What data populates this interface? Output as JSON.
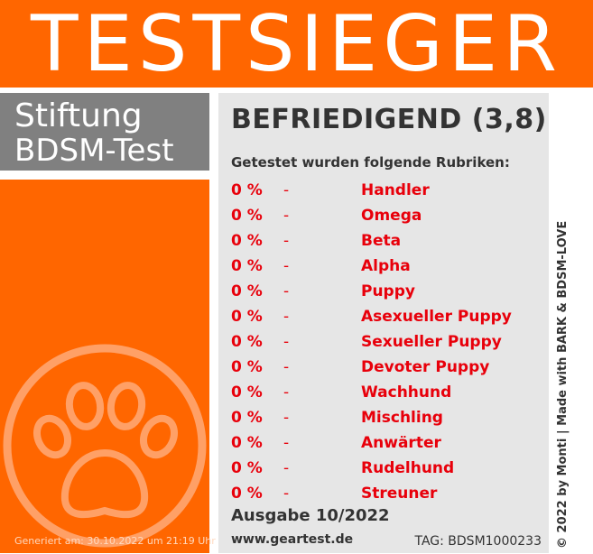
{
  "banner": {
    "title": "TESTSIEGER"
  },
  "brand": {
    "line1": "Stiftung",
    "line2": "BDSM-Test"
  },
  "rating": "BEFRIEDIGEND (3,8)",
  "subtitle": "Getestet wurden folgende Rubriken:",
  "rubriken": [
    {
      "pct": "0 %",
      "dash": "-",
      "name": "Handler"
    },
    {
      "pct": "0 %",
      "dash": "-",
      "name": "Omega"
    },
    {
      "pct": "0 %",
      "dash": "-",
      "name": "Beta"
    },
    {
      "pct": "0 %",
      "dash": "-",
      "name": "Alpha"
    },
    {
      "pct": "0 %",
      "dash": "-",
      "name": "Puppy"
    },
    {
      "pct": "0 %",
      "dash": "-",
      "name": "Asexueller Puppy"
    },
    {
      "pct": "0 %",
      "dash": "-",
      "name": "Sexueller Puppy"
    },
    {
      "pct": "0 %",
      "dash": "-",
      "name": "Devoter Puppy"
    },
    {
      "pct": "0 %",
      "dash": "-",
      "name": "Wachhund"
    },
    {
      "pct": "0 %",
      "dash": "-",
      "name": "Mischling"
    },
    {
      "pct": "0 %",
      "dash": "-",
      "name": "Anwärter"
    },
    {
      "pct": "0 %",
      "dash": "-",
      "name": "Rudelhund"
    },
    {
      "pct": "0 %",
      "dash": "-",
      "name": "Streuner"
    }
  ],
  "issue": "Ausgabe 10/2022",
  "website": "www.geartest.de",
  "tag": "TAG: BDSM1000233",
  "generated": "Generiert am: 30.10.2022 um 21:19 Uhr",
  "copyright": "© 2022 by Monti | Made with BARK & BDSM-LOVE",
  "icons": {
    "paw": "paw-icon"
  },
  "colors": {
    "accent": "#ff6600",
    "grey": "#808080",
    "panel": "#e6e6e6",
    "red": "#e8000b"
  }
}
